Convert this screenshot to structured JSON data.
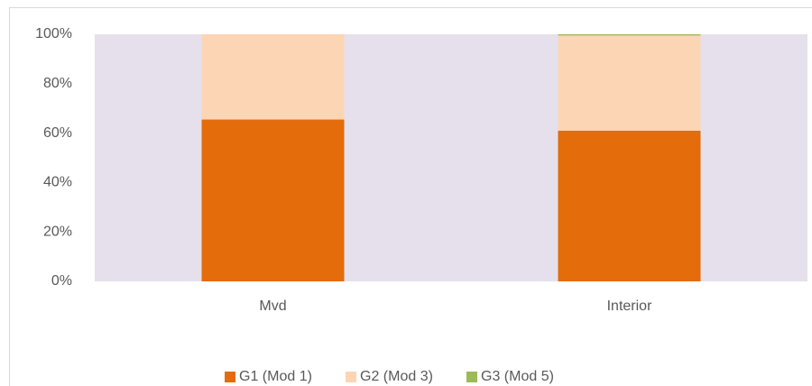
{
  "chart_data": {
    "type": "stacked_bar",
    "categories": [
      "Mvd",
      "Interior"
    ],
    "series": [
      {
        "name": "G1 (Mod 1)",
        "color": "#e46c0a",
        "values": [
          65.5,
          61
        ]
      },
      {
        "name": "G2 (Mod 3)",
        "color": "#fcd5b5",
        "values": [
          34.5,
          38.5
        ]
      },
      {
        "name": "G3 (Mod 5)",
        "color": "#9bbb59",
        "values": [
          0,
          0.5
        ]
      }
    ],
    "ylim": [
      0,
      100
    ],
    "yticks": [
      {
        "value": 0,
        "label": "0%"
      },
      {
        "value": 20,
        "label": "20%"
      },
      {
        "value": 40,
        "label": "40%"
      },
      {
        "value": 60,
        "label": "60%"
      },
      {
        "value": 80,
        "label": "80%"
      },
      {
        "value": 100,
        "label": "100%"
      }
    ],
    "grid": false,
    "legend": "bottom"
  }
}
